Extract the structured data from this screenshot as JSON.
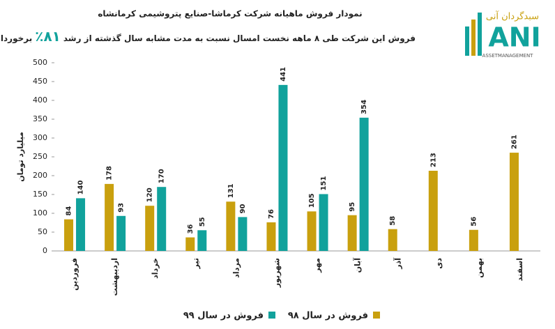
{
  "chart_data": {
    "type": "bar",
    "title": "نمودار فروش ماهیانه شرکت کرماشا-صنایع پتروشیمی کرمانشاه",
    "subtitle": [
      "فروش این شرکت طی ۸ ماهه نخست امسال نسبت به مدت مشابه سال گذشته از رشد",
      "۸۱٪",
      "برخوردار بوده است."
    ],
    "y_label": "میلیارد تومان",
    "categories": [
      "فروردین",
      "اردیبهشت",
      "خرداد",
      "تیر",
      "مرداد",
      "شهریور",
      "مهر",
      "آبان",
      "آذر",
      "دی",
      "بهمن",
      "اسفند"
    ],
    "series": [
      {
        "name": "فروش در سال ۹۸",
        "color": "#c9a00e",
        "values": [
          84,
          178,
          120,
          36,
          131,
          76,
          105,
          95,
          58,
          213,
          56,
          261
        ]
      },
      {
        "name": "فروش در سال ۹۹",
        "color": "#11a29c",
        "values": [
          140,
          93,
          170,
          55,
          90,
          441,
          151,
          354,
          null,
          null,
          null,
          null
        ]
      }
    ],
    "ylim": [
      0,
      500
    ],
    "yticks": [
      0,
      50,
      100,
      150,
      200,
      250,
      300,
      350,
      400,
      450,
      500
    ],
    "legend": "bottom",
    "logo": {
      "brand": "سبدگردان آنی",
      "mark": "ANI",
      "tagline": "ASSETMANAGEMENT"
    }
  }
}
